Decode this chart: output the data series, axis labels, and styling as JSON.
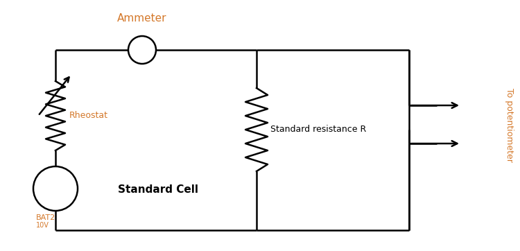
{
  "background_color": "#ffffff",
  "line_color": "#000000",
  "text_color": "#000000",
  "label_color_rheostat": "#d4782a",
  "label_color_bat": "#d4782a",
  "ammeter_label": "Ammeter",
  "ammeter_label_color": "#d4782a",
  "rheostat_label": "Rheostat",
  "standard_cell_label": "Standard Cell",
  "bat_label": "BAT2",
  "voltage_label": "10V",
  "standard_resistance_label": "Standard resistance R",
  "potentiometer_label": "To potentiometer",
  "potentiometer_label_color": "#d4782a",
  "lw": 1.8
}
